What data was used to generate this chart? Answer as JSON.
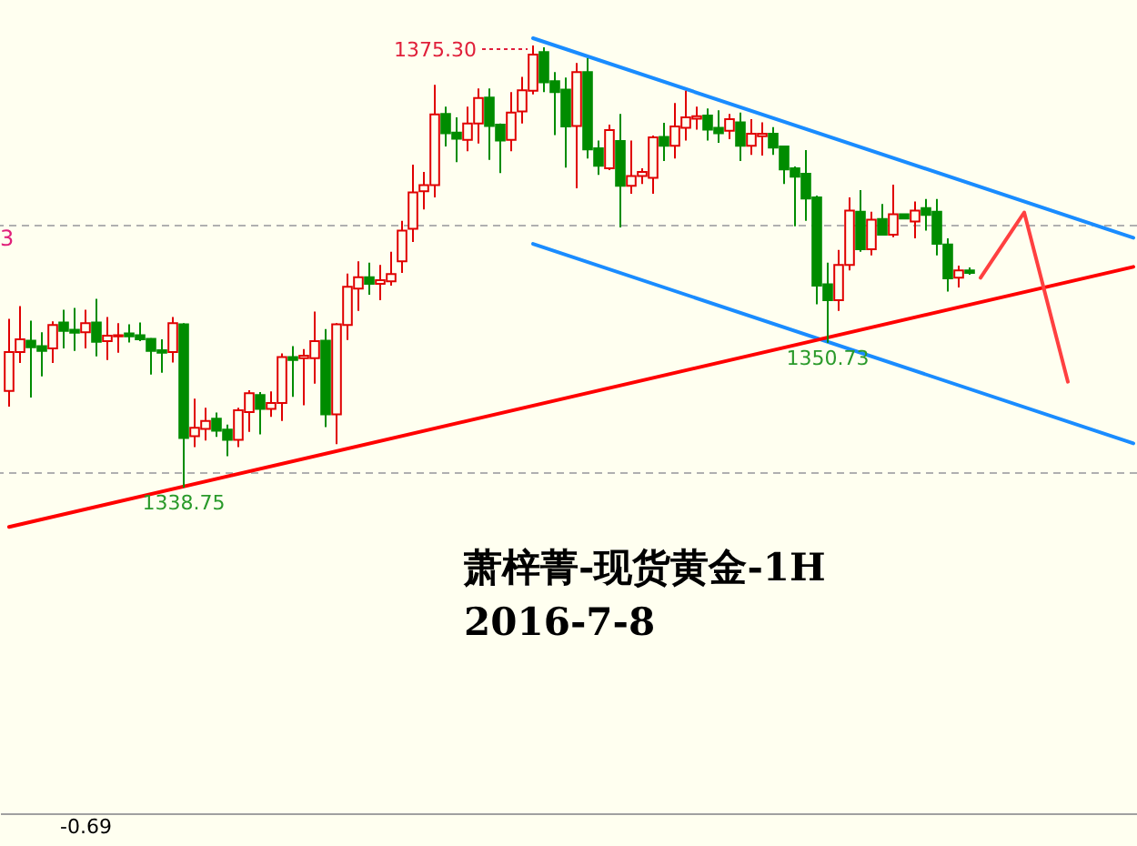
{
  "chart_data": {
    "type": "candlestick",
    "categories": [
      null,
      null,
      null,
      null,
      null,
      null,
      null,
      null,
      null,
      null,
      null,
      null,
      null,
      null,
      null,
      null,
      null,
      null,
      null,
      null,
      null,
      null,
      null,
      null,
      null,
      null,
      null,
      null,
      null,
      null,
      null,
      null,
      null,
      null,
      null,
      null,
      null,
      null,
      null,
      null,
      null,
      null,
      null,
      null,
      null,
      null,
      null,
      null,
      null,
      null,
      null,
      null,
      null,
      null,
      null,
      null,
      null,
      null,
      null,
      null,
      null,
      null,
      null,
      null,
      null,
      null,
      null,
      null,
      null,
      null,
      null,
      null,
      null,
      null,
      null,
      null,
      null,
      null,
      null,
      null,
      null,
      null,
      null,
      null,
      null,
      null,
      null,
      null,
      null,
      null,
      null,
      null,
      null,
      null,
      null,
      null,
      null,
      null,
      null,
      null,
      null,
      null,
      null,
      null
    ],
    "ohlc": [
      [
        1346.75,
        1352.7,
        1345.45,
        1349.95
      ],
      [
        1349.95,
        1353.75,
        1349.05,
        1351.0
      ],
      [
        1350.9,
        1352.55,
        1346.2,
        1350.35
      ],
      [
        1350.45,
        1351.6,
        1347.95,
        1350.05
      ],
      [
        1350.25,
        1352.5,
        1349.05,
        1352.2
      ],
      [
        1352.4,
        1353.45,
        1350.25,
        1351.7
      ],
      [
        1351.8,
        1353.6,
        1350.05,
        1351.55
      ],
      [
        1351.6,
        1353.45,
        1350.25,
        1352.35
      ],
      [
        1352.4,
        1354.35,
        1349.6,
        1350.8
      ],
      [
        1350.85,
        1352.85,
        1349.3,
        1351.3
      ],
      [
        1351.25,
        1352.35,
        1349.9,
        1351.35
      ],
      [
        1351.5,
        1352.25,
        1350.75,
        1351.25
      ],
      [
        1351.35,
        1352.4,
        1350.85,
        1351.0
      ],
      [
        1351.05,
        1351.1,
        1348.1,
        1350.05
      ],
      [
        1350.1,
        1351.0,
        1348.25,
        1349.9
      ],
      [
        1349.95,
        1352.85,
        1349.1,
        1352.35
      ],
      [
        1352.25,
        1352.35,
        1338.75,
        1342.85
      ],
      [
        1343.0,
        1346.1,
        1342.1,
        1343.7
      ],
      [
        1343.6,
        1345.35,
        1342.65,
        1344.25
      ],
      [
        1344.45,
        1344.95,
        1342.95,
        1343.45
      ],
      [
        1343.55,
        1343.95,
        1341.35,
        1342.7
      ],
      [
        1342.7,
        1345.35,
        1342.1,
        1345.15
      ],
      [
        1345.0,
        1346.8,
        1343.35,
        1346.55
      ],
      [
        1346.4,
        1346.65,
        1343.15,
        1345.25
      ],
      [
        1345.25,
        1346.7,
        1344.6,
        1345.75
      ],
      [
        1345.75,
        1349.85,
        1344.25,
        1349.55
      ],
      [
        1349.55,
        1350.45,
        1346.25,
        1349.3
      ],
      [
        1349.45,
        1350.2,
        1345.55,
        1349.65
      ],
      [
        1349.45,
        1353.3,
        1347.35,
        1350.85
      ],
      [
        1350.9,
        1351.85,
        1343.75,
        1344.8
      ],
      [
        1344.8,
        1352.35,
        1342.35,
        1352.25
      ],
      [
        1352.2,
        1356.45,
        1350.95,
        1355.35
      ],
      [
        1355.2,
        1357.45,
        1353.35,
        1356.15
      ],
      [
        1356.15,
        1357.35,
        1354.7,
        1355.6
      ],
      [
        1355.6,
        1357.15,
        1354.25,
        1355.9
      ],
      [
        1355.8,
        1358.25,
        1355.45,
        1356.4
      ],
      [
        1357.45,
        1360.8,
        1356.5,
        1360.0
      ],
      [
        1360.15,
        1365.45,
        1359.05,
        1363.15
      ],
      [
        1363.25,
        1364.85,
        1361.75,
        1363.75
      ],
      [
        1363.75,
        1372.05,
        1362.75,
        1369.6
      ],
      [
        1369.65,
        1370.25,
        1366.95,
        1368.05
      ],
      [
        1368.1,
        1369.35,
        1365.65,
        1367.6
      ],
      [
        1367.5,
        1370.25,
        1366.55,
        1368.85
      ],
      [
        1368.85,
        1371.75,
        1367.2,
        1370.95
      ],
      [
        1371.0,
        1371.75,
        1365.85,
        1368.65
      ],
      [
        1368.75,
        1368.85,
        1364.75,
        1367.45
      ],
      [
        1367.5,
        1371.45,
        1366.55,
        1369.75
      ],
      [
        1369.85,
        1372.7,
        1368.85,
        1371.6
      ],
      [
        1371.55,
        1375.3,
        1371.25,
        1374.55
      ],
      [
        1374.75,
        1375.15,
        1371.45,
        1372.25
      ],
      [
        1372.35,
        1373.1,
        1367.9,
        1371.45
      ],
      [
        1371.65,
        1372.65,
        1365.2,
        1368.6
      ],
      [
        1368.65,
        1373.85,
        1363.5,
        1373.1
      ],
      [
        1373.1,
        1374.25,
        1365.95,
        1366.7
      ],
      [
        1366.8,
        1367.45,
        1364.6,
        1365.35
      ],
      [
        1365.15,
        1368.75,
        1365.0,
        1368.3
      ],
      [
        1367.4,
        1369.65,
        1360.25,
        1363.7
      ],
      [
        1363.7,
        1367.45,
        1363.05,
        1364.5
      ],
      [
        1364.5,
        1365.15,
        1363.85,
        1364.85
      ],
      [
        1364.35,
        1367.85,
        1363.05,
        1367.7
      ],
      [
        1367.75,
        1368.9,
        1365.75,
        1367.0
      ],
      [
        1367.0,
        1370.55,
        1365.95,
        1368.6
      ],
      [
        1368.5,
        1371.55,
        1367.45,
        1369.35
      ],
      [
        1369.25,
        1370.25,
        1368.35,
        1369.45
      ],
      [
        1369.5,
        1370.1,
        1367.45,
        1368.35
      ],
      [
        1368.5,
        1369.95,
        1367.25,
        1368.05
      ],
      [
        1368.25,
        1369.65,
        1367.55,
        1369.2
      ],
      [
        1368.95,
        1369.75,
        1365.75,
        1367.0
      ],
      [
        1367.0,
        1369.2,
        1366.25,
        1368.0
      ],
      [
        1367.8,
        1368.95,
        1366.2,
        1368.0
      ],
      [
        1368.0,
        1368.55,
        1366.25,
        1366.85
      ],
      [
        1366.95,
        1367.0,
        1363.85,
        1365.05
      ],
      [
        1365.15,
        1365.3,
        1360.35,
        1364.45
      ],
      [
        1364.7,
        1366.65,
        1360.8,
        1362.65
      ],
      [
        1362.75,
        1362.9,
        1353.9,
        1355.45
      ],
      [
        1355.55,
        1357.35,
        1350.73,
        1354.25
      ],
      [
        1354.25,
        1358.4,
        1353.35,
        1357.15
      ],
      [
        1357.15,
        1362.75,
        1356.7,
        1361.65
      ],
      [
        1361.55,
        1363.35,
        1358.25,
        1358.45
      ],
      [
        1358.45,
        1361.55,
        1357.95,
        1360.9
      ],
      [
        1360.95,
        1362.2,
        1359.6,
        1359.65
      ],
      [
        1359.65,
        1363.8,
        1359.45,
        1361.35
      ],
      [
        1361.35,
        1361.35,
        1360.95,
        1361.0
      ],
      [
        1360.75,
        1362.4,
        1359.35,
        1361.65
      ],
      [
        1361.85,
        1362.6,
        1360.0,
        1361.3
      ],
      [
        1361.55,
        1362.6,
        1357.95,
        1358.9
      ],
      [
        1358.85,
        1359.35,
        1354.95,
        1356.05
      ],
      [
        1356.1,
        1357.1,
        1355.3,
        1356.7
      ],
      [
        1356.7,
        1356.95,
        1356.35,
        1356.5
      ],
      null,
      null,
      null,
      null,
      null,
      null,
      null,
      null,
      null,
      null,
      null,
      null,
      null,
      null,
      null
    ],
    "colors": [
      "#e00000",
      "#e00000",
      "#008c00",
      "#008c00",
      "#e00000",
      "#008c00",
      "#008c00",
      "#e00000",
      "#008c00",
      "#e00000",
      "#e00000",
      "#008c00",
      "#008c00",
      "#008c00",
      "#008c00",
      "#e00000",
      "#008c00",
      "#e00000",
      "#e00000",
      "#008c00",
      "#008c00",
      "#e00000",
      "#e00000",
      "#008c00",
      "#e00000",
      "#e00000",
      "#008c00",
      "#e00000",
      "#e00000",
      "#008c00",
      "#e00000",
      "#e00000",
      "#e00000",
      "#008c00",
      "#e00000",
      "#e00000",
      "#e00000",
      "#e00000",
      "#e00000",
      "#e00000",
      "#008c00",
      "#008c00",
      "#e00000",
      "#e00000",
      "#008c00",
      "#008c00",
      "#e00000",
      "#e00000",
      "#e00000",
      "#008c00",
      "#008c00",
      "#008c00",
      "#e00000",
      "#008c00",
      "#008c00",
      "#e00000",
      "#008c00",
      "#e00000",
      "#e00000",
      "#e00000",
      "#008c00",
      "#e00000",
      "#e00000",
      "#e00000",
      "#008c00",
      "#008c00",
      "#e00000",
      "#008c00",
      "#e00000",
      "#e00000",
      "#008c00",
      "#008c00",
      "#008c00",
      "#008c00",
      "#008c00",
      "#008c00",
      "#e00000",
      "#e00000",
      "#008c00",
      "#e00000",
      "#008c00",
      "#e00000",
      "#008c00",
      "#e00000",
      "#008c00",
      "#008c00",
      "#008c00",
      "#e00000",
      "#008c00",
      null,
      null,
      null,
      null,
      null,
      null,
      null,
      null,
      null,
      null,
      null,
      null,
      null,
      null,
      null
    ],
    "series": [
      {
        "type": "line",
        "color": "#1a8cff",
        "values": [
          null,
          null,
          null,
          null,
          null,
          null,
          null,
          null,
          null,
          null,
          null,
          null,
          null,
          null,
          null,
          null,
          null,
          null,
          null,
          null,
          null,
          null,
          null,
          null,
          null,
          null,
          null,
          null,
          null,
          null,
          null,
          null,
          null,
          null,
          null,
          null,
          null,
          null,
          null,
          null,
          null,
          null,
          null,
          null,
          null,
          null,
          null,
          null,
          1375.9,
          null,
          null,
          null,
          null,
          null,
          null,
          null,
          null,
          null,
          null,
          null,
          null,
          null,
          null,
          null,
          null,
          null,
          null,
          null,
          null,
          null,
          null,
          null,
          null,
          null,
          null,
          null,
          null,
          null,
          null,
          null,
          null,
          null,
          null,
          null,
          null,
          null,
          null,
          null,
          null,
          null,
          null,
          null,
          null,
          null,
          null,
          null,
          null,
          null,
          null,
          null,
          null,
          null,
          null,
          1359.4
        ]
      },
      {
        "type": "line",
        "color": "#1a8cff",
        "values": [
          null,
          null,
          null,
          null,
          null,
          null,
          null,
          null,
          null,
          null,
          null,
          null,
          null,
          null,
          null,
          null,
          null,
          null,
          null,
          null,
          null,
          null,
          null,
          null,
          null,
          null,
          null,
          null,
          null,
          null,
          null,
          null,
          null,
          null,
          null,
          null,
          null,
          null,
          null,
          null,
          null,
          null,
          null,
          null,
          null,
          null,
          null,
          null,
          1358.9,
          null,
          null,
          null,
          null,
          null,
          null,
          null,
          null,
          null,
          null,
          null,
          null,
          null,
          null,
          null,
          null,
          null,
          null,
          null,
          null,
          null,
          null,
          null,
          null,
          null,
          null,
          null,
          null,
          null,
          null,
          null,
          null,
          null,
          null,
          null,
          null,
          null,
          null,
          null,
          null,
          null,
          null,
          null,
          null,
          null,
          null,
          null,
          null,
          null,
          null,
          null,
          null,
          null,
          null,
          1342.4
        ]
      },
      {
        "type": "line",
        "color": "#ff0000",
        "values": [
          1335.5,
          null,
          null,
          null,
          null,
          null,
          null,
          null,
          null,
          null,
          null,
          null,
          null,
          null,
          null,
          null,
          null,
          null,
          null,
          null,
          null,
          null,
          null,
          null,
          null,
          null,
          null,
          null,
          null,
          null,
          null,
          null,
          null,
          null,
          null,
          null,
          null,
          null,
          null,
          null,
          null,
          null,
          null,
          null,
          null,
          null,
          null,
          null,
          null,
          null,
          null,
          null,
          null,
          null,
          null,
          null,
          null,
          null,
          null,
          null,
          null,
          null,
          null,
          null,
          null,
          null,
          null,
          null,
          null,
          null,
          null,
          null,
          null,
          null,
          null,
          null,
          null,
          null,
          null,
          null,
          null,
          null,
          null,
          null,
          null,
          null,
          null,
          null,
          null,
          null,
          null,
          null,
          null,
          null,
          null,
          null,
          null,
          null,
          null,
          null,
          null,
          null,
          null,
          1357.0
        ]
      },
      {
        "type": "line",
        "color": "#ff4040",
        "values": [
          null,
          null,
          null,
          null,
          null,
          null,
          null,
          null,
          null,
          null,
          null,
          null,
          null,
          null,
          null,
          null,
          null,
          null,
          null,
          null,
          null,
          null,
          null,
          null,
          null,
          null,
          null,
          null,
          null,
          null,
          null,
          null,
          null,
          null,
          null,
          null,
          null,
          null,
          null,
          null,
          null,
          null,
          null,
          null,
          null,
          null,
          null,
          null,
          null,
          null,
          null,
          null,
          null,
          null,
          null,
          null,
          null,
          null,
          null,
          null,
          null,
          null,
          null,
          null,
          null,
          null,
          null,
          null,
          null,
          null,
          null,
          null,
          null,
          null,
          null,
          null,
          null,
          null,
          null,
          null,
          null,
          null,
          null,
          null,
          null,
          null,
          null,
          null,
          null,
          1356.1,
          null,
          null,
          null,
          1361.5,
          null,
          null,
          null,
          1347.5,
          null,
          null,
          null,
          null,
          null,
          null
        ]
      }
    ],
    "ref_lines": [
      {
        "axis": "y",
        "value": 1360.41,
        "color": "#b0b0b0",
        "line_style": "dashed"
      },
      {
        "axis": "y",
        "value": 1339.96,
        "color": "#b0b0b0",
        "line_style": "dashed"
      }
    ],
    "annotations": [
      "1375.30",
      {
        "text": "1338.75",
        "y": 1338.75
      },
      {
        "text": "1350.73",
        "y": 1350.73
      },
      "萧梓菁-现货黄金-1H",
      "2016-7-8",
      "-0.69",
      "3"
    ],
    "tick_labels": false
  }
}
